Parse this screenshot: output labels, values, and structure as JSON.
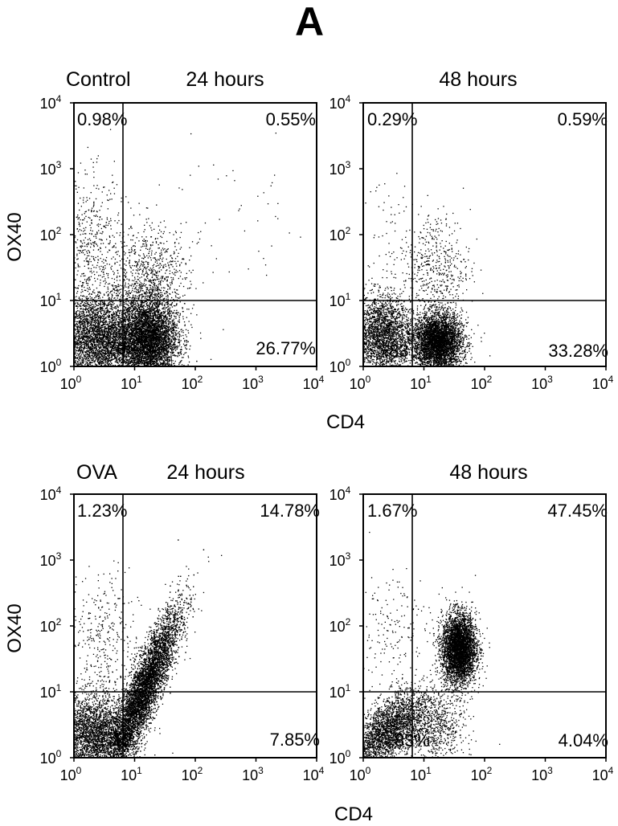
{
  "figure": {
    "panel_letter": "A",
    "rows": [
      {
        "group_label": "Control",
        "x_axis_title": "CD4",
        "y_axis_title": "OX40",
        "plots": [
          {
            "condition_label": "24 hours",
            "quadrants": {
              "upper_left": "0.98%",
              "upper_right": "0.55%",
              "lower_left": "70",
              "lower_right": "26.77%"
            }
          },
          {
            "condition_label": "48 hours",
            "quadrants": {
              "upper_left": "0.29%",
              "upper_right": "0.59%",
              "lower_left": ".83",
              "lower_right": "33.28%"
            }
          }
        ]
      },
      {
        "group_label": "OVA",
        "x_axis_title": "CD4",
        "y_axis_title": "OX40",
        "plots": [
          {
            "condition_label": "24 hours",
            "quadrants": {
              "upper_left": "1.23%",
              "upper_right": "14.78%",
              "lower_left": "12",
              "lower_right": "7.85%"
            }
          },
          {
            "condition_label": "48 hours",
            "quadrants": {
              "upper_left": "1.67%",
              "upper_right": "47.45%",
              "lower_left": "83%",
              "lower_right": "4.04%"
            }
          }
        ]
      }
    ]
  },
  "chart_data": [
    {
      "type": "scatter",
      "group": "Control",
      "condition": "24 hours",
      "xlabel": "CD4",
      "ylabel": "OX40",
      "xscale": "log",
      "yscale": "log",
      "xlim": [
        1,
        10000
      ],
      "ylim": [
        1,
        10000
      ],
      "tick_labels": [
        "10^0",
        "10^1",
        "10^2",
        "10^3",
        "10^4"
      ],
      "gates": {
        "x": 7,
        "y": 10
      },
      "quadrant_percentages": {
        "upper_left": 0.98,
        "upper_right": 0.55,
        "lower_right": 26.77
      },
      "populations": [
        {
          "x": 2.5,
          "y": 2.5,
          "sx": 0.38,
          "sy": 0.35,
          "n": 4200
        },
        {
          "x": 17,
          "y": 2.5,
          "sx": 0.24,
          "sy": 0.32,
          "n": 4800
        },
        {
          "x": 18,
          "y": 20,
          "sx": 0.32,
          "sy": 0.42,
          "n": 900
        },
        {
          "x": 2,
          "y": 60,
          "sx": 0.25,
          "sy": 0.55,
          "n": 500
        },
        {
          "x": 500,
          "y": 150,
          "sx": 0.7,
          "sy": 0.55,
          "n": 50
        }
      ]
    },
    {
      "type": "scatter",
      "group": "Control",
      "condition": "48 hours",
      "xlabel": "CD4",
      "ylabel": "OX40",
      "xscale": "log",
      "yscale": "log",
      "xlim": [
        1,
        10000
      ],
      "ylim": [
        1,
        10000
      ],
      "tick_labels": [
        "10^0",
        "10^1",
        "10^2",
        "10^3",
        "10^4"
      ],
      "gates": {
        "x": 7,
        "y": 10
      },
      "quadrant_percentages": {
        "upper_left": 0.29,
        "upper_right": 0.59,
        "lower_right": 33.28
      },
      "populations": [
        {
          "x": 2,
          "y": 3,
          "sx": 0.25,
          "sy": 0.3,
          "n": 2600
        },
        {
          "x": 17,
          "y": 2.3,
          "sx": 0.2,
          "sy": 0.22,
          "n": 4200
        },
        {
          "x": 16,
          "y": 30,
          "sx": 0.28,
          "sy": 0.45,
          "n": 500
        },
        {
          "x": 2.5,
          "y": 80,
          "sx": 0.3,
          "sy": 0.5,
          "n": 70
        }
      ]
    },
    {
      "type": "scatter",
      "group": "OVA",
      "condition": "24 hours",
      "xlabel": "CD4",
      "ylabel": "OX40",
      "xscale": "log",
      "yscale": "log",
      "xlim": [
        1,
        10000
      ],
      "ylim": [
        1,
        10000
      ],
      "tick_labels": [
        "10^0",
        "10^1",
        "10^2",
        "10^3",
        "10^4"
      ],
      "gates": {
        "x": 7,
        "y": 10
      },
      "quadrant_percentages": {
        "upper_left": 1.23,
        "upper_right": 14.78,
        "lower_right": 7.85
      },
      "populations": [
        {
          "x": 2.2,
          "y": 2.2,
          "sx": 0.3,
          "sy": 0.3,
          "n": 3000
        },
        {
          "x": 14,
          "y": 10,
          "sx": 0.3,
          "sy": 0.62,
          "n": 6500,
          "rho": 0.88
        },
        {
          "x": 3,
          "y": 60,
          "sx": 0.3,
          "sy": 0.5,
          "n": 350
        }
      ]
    },
    {
      "type": "scatter",
      "group": "OVA",
      "condition": "48 hours",
      "xlabel": "CD4",
      "ylabel": "OX40",
      "xscale": "log",
      "yscale": "log",
      "xlim": [
        1,
        10000
      ],
      "ylim": [
        1,
        10000
      ],
      "tick_labels": [
        "10^0",
        "10^1",
        "10^2",
        "10^3",
        "10^4"
      ],
      "gates": {
        "x": 7,
        "y": 10
      },
      "quadrant_percentages": {
        "upper_left": 1.67,
        "upper_right": 47.45,
        "lower_right": 4.04
      },
      "populations": [
        {
          "x": 2.5,
          "y": 2.5,
          "sx": 0.3,
          "sy": 0.3,
          "n": 2600,
          "rho": 0.6
        },
        {
          "x": 38,
          "y": 45,
          "sx": 0.14,
          "sy": 0.26,
          "n": 4200
        },
        {
          "x": 15,
          "y": 3,
          "sx": 0.25,
          "sy": 0.3,
          "n": 800
        },
        {
          "x": 3,
          "y": 80,
          "sx": 0.3,
          "sy": 0.5,
          "n": 180
        }
      ]
    }
  ]
}
